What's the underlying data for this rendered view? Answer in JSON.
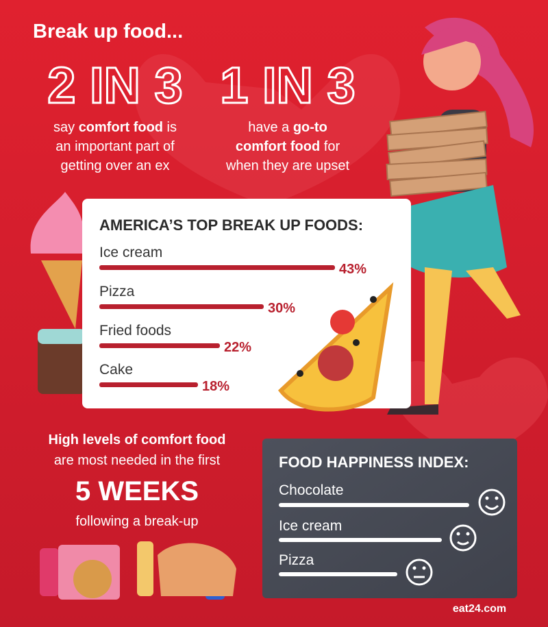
{
  "title": "Break up food...",
  "stats": [
    {
      "headline": "2 IN 3",
      "lines": [
        [
          {
            "text": "say "
          },
          {
            "text": "comfort food",
            "bold": true
          },
          {
            "text": " is"
          }
        ],
        [
          {
            "text": "an important part of"
          }
        ],
        [
          {
            "text": "getting over an ex"
          }
        ]
      ]
    },
    {
      "headline": "1 IN 3",
      "lines": [
        [
          {
            "text": "have a "
          },
          {
            "text": "go-to",
            "bold": true
          }
        ],
        [
          {
            "text": "comfort food",
            "bold": true
          },
          {
            "text": " for"
          }
        ],
        [
          {
            "text": "when they are upset"
          }
        ]
      ]
    }
  ],
  "chart_data": {
    "type": "bar",
    "orientation": "horizontal",
    "title": "AMERICA’S TOP BREAK UP FOODS:",
    "categories": [
      "Ice cream",
      "Pizza",
      "Fried foods",
      "Cake"
    ],
    "values": [
      43,
      30,
      22,
      18
    ],
    "value_labels": [
      "43%",
      "30%",
      "22%",
      "18%"
    ],
    "color": "#b8202e"
  },
  "weeks": {
    "lines": [
      "High levels of comfort food",
      "are most needed in the first"
    ],
    "highlight": "5 WEEKS",
    "footer": "following a break-up"
  },
  "happiness_index": {
    "title": "FOOD HAPPINESS INDEX:",
    "items": [
      "Chocolate",
      "Ice cream",
      "Pizza"
    ]
  },
  "source": "eat24.com"
}
